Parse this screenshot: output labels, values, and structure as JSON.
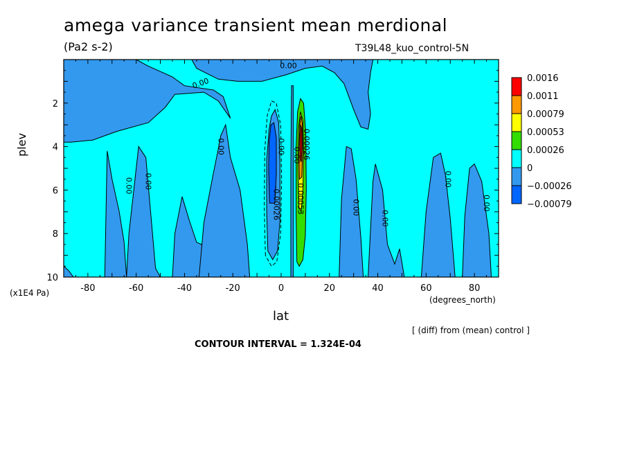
{
  "chart_data": {
    "type": "heatmap",
    "title": "amega variance transient mean merdional",
    "units_label": "(Pa2 s-2)",
    "run_label": "T39L48_kuo_control-5N",
    "xlabel": "lat",
    "ylabel": "plev",
    "x_unit_label": "(degrees_north)",
    "y_unit_label": "(x1E4 Pa)",
    "xlim": [
      -90,
      90
    ],
    "ylim": [
      10,
      0
    ],
    "x_ticks": [
      "-80",
      "-60",
      "-40",
      "-20",
      "0",
      "20",
      "40",
      "60",
      "80"
    ],
    "y_ticks": [
      "2",
      "4",
      "6",
      "8",
      "10"
    ],
    "x_tick_values": [
      -80,
      -60,
      -40,
      -20,
      0,
      20,
      40,
      60,
      80
    ],
    "y_tick_values": [
      2,
      4,
      6,
      8,
      10
    ],
    "note": "[ (diff) from (mean) control ]",
    "contour_interval_text": "CONTOUR INTERVAL = 1.324E-04",
    "colorbar": {
      "levels": [
        "0.0016",
        "0.0011",
        "0.00079",
        "0.00053",
        "0.00026",
        "0",
        "−0.00026",
        "−0.00079"
      ],
      "colors": [
        "#ff0000",
        "#ff9900",
        "#ffff00",
        "#33dd00",
        "#00ffff",
        "#3399ee",
        "#0066ff"
      ]
    },
    "colors": {
      "background": "#00ffff",
      "negative_small": "#3399ee",
      "negative_large": "#0066ff",
      "positive_small": "#33dd00",
      "positive_mid": "#ffff00",
      "positive_high": "#ff9900",
      "positive_max": "#ff0000"
    },
    "contour_labels": [
      {
        "text": "0.00",
        "lat": 3,
        "p": 0.4
      },
      {
        "text": "0.00",
        "lat": -33,
        "p": 1.2
      },
      {
        "text": "0.00",
        "lat": -26,
        "p": 4.0
      },
      {
        "text": "0.00",
        "lat": -64,
        "p": 5.8
      },
      {
        "text": "0.00",
        "lat": -56,
        "p": 5.6
      },
      {
        "text": "-0.00026",
        "lat": -3,
        "p": 6.6
      },
      {
        "text": "0.00",
        "lat": -1,
        "p": 4.0
      },
      {
        "text": "0.00026",
        "lat": 9.5,
        "p": 3.9
      },
      {
        "text": "0.00",
        "lat": 5.5,
        "p": 4.4
      },
      {
        "text": "0.00053",
        "lat": 7,
        "p": 6.4
      },
      {
        "text": "0.00",
        "lat": 30,
        "p": 6.8
      },
      {
        "text": "0.00",
        "lat": 42,
        "p": 7.3
      },
      {
        "text": "0.00",
        "lat": 68,
        "p": 5.5
      },
      {
        "text": "0.00",
        "lat": 84,
        "p": 6.6
      }
    ],
    "regions": [
      {
        "name": "negative-band-sh-1",
        "level": "negative_small",
        "pts": [
          [
            -90,
            10
          ],
          [
            -90,
            9.5
          ],
          [
            -88,
            9.7
          ],
          [
            -86,
            10
          ]
        ]
      },
      {
        "name": "negative-band-sh-2",
        "level": "negative_small",
        "pts": [
          [
            -73,
            10
          ],
          [
            -72,
            4.2
          ],
          [
            -70,
            5.5
          ],
          [
            -67,
            7.0
          ],
          [
            -65,
            8.4
          ],
          [
            -64,
            10
          ]
        ]
      },
      {
        "name": "negative-band-sh-3",
        "level": "negative_small",
        "pts": [
          [
            -64,
            10
          ],
          [
            -63,
            8
          ],
          [
            -61,
            6
          ],
          [
            -59,
            4.0
          ],
          [
            -56,
            4.5
          ],
          [
            -52,
            9.6
          ],
          [
            -50,
            10
          ]
        ]
      },
      {
        "name": "negative-band-sh-4",
        "level": "negative_small",
        "pts": [
          [
            -45,
            10
          ],
          [
            -44,
            8
          ],
          [
            -41,
            6.3
          ],
          [
            -38,
            7.4
          ],
          [
            -35,
            8.4
          ],
          [
            -33,
            8.5
          ],
          [
            -31,
            9.2
          ],
          [
            -30,
            10
          ]
        ]
      },
      {
        "name": "negative-band-mid",
        "level": "negative_small",
        "pts": [
          [
            -34,
            10
          ],
          [
            -32,
            7.5
          ],
          [
            -28,
            5.2
          ],
          [
            -26,
            4.1
          ],
          [
            -25,
            3.5
          ],
          [
            -23,
            3.0
          ],
          [
            -21,
            4.5
          ],
          [
            -17,
            6.0
          ],
          [
            -14,
            8.5
          ],
          [
            -13,
            10
          ]
        ]
      },
      {
        "name": "negative-core",
        "level": "negative_small",
        "pts": [
          [
            -5.5,
            8.8
          ],
          [
            -6,
            7.0
          ],
          [
            -6,
            4.6
          ],
          [
            -5,
            3.2
          ],
          [
            -4,
            2.6
          ],
          [
            -2.5,
            2.3
          ],
          [
            -1,
            2.9
          ],
          [
            -0.5,
            4.8
          ],
          [
            -0.5,
            7.4
          ],
          [
            -1.5,
            8.8
          ],
          [
            -3.5,
            9.2
          ]
        ]
      },
      {
        "name": "negative-core-strong",
        "level": "negative_large",
        "pts": [
          [
            -4.8,
            6.6
          ],
          [
            -5.2,
            5.0
          ],
          [
            -5,
            3.8
          ],
          [
            -4.2,
            3.0
          ],
          [
            -3,
            2.9
          ],
          [
            -2,
            3.6
          ],
          [
            -2,
            5.3
          ],
          [
            -2.6,
            6.6
          ]
        ]
      },
      {
        "name": "equator-column",
        "level": "negative_small",
        "pts": [
          [
            4,
            10
          ],
          [
            4,
            5
          ],
          [
            4.3,
            1.2
          ],
          [
            5,
            1.2
          ],
          [
            5,
            10
          ]
        ]
      },
      {
        "name": "negative-band-nh-1",
        "level": "negative_small",
        "pts": [
          [
            24,
            10
          ],
          [
            25,
            6.4
          ],
          [
            27,
            4.0
          ],
          [
            29,
            4.1
          ],
          [
            31,
            5.5
          ],
          [
            33,
            8.2
          ],
          [
            34,
            10
          ]
        ]
      },
      {
        "name": "negative-band-nh-2",
        "level": "negative_small",
        "pts": [
          [
            36,
            10
          ],
          [
            37,
            7.8
          ],
          [
            38,
            5.6
          ],
          [
            39,
            4.8
          ],
          [
            42,
            6.0
          ],
          [
            44,
            8.5
          ],
          [
            47,
            9.4
          ],
          [
            49,
            8.7
          ],
          [
            51,
            10
          ]
        ]
      },
      {
        "name": "negative-band-nh-3",
        "level": "negative_small",
        "pts": [
          [
            58,
            10
          ],
          [
            60,
            7.0
          ],
          [
            63,
            4.5
          ],
          [
            66,
            4.3
          ],
          [
            68,
            5.3
          ],
          [
            70,
            7.3
          ],
          [
            72,
            10
          ]
        ]
      },
      {
        "name": "negative-band-nh-4",
        "level": "negative_small",
        "pts": [
          [
            75,
            10
          ],
          [
            76,
            7.2
          ],
          [
            78,
            5.0
          ],
          [
            80,
            4.8
          ],
          [
            83,
            5.6
          ],
          [
            86,
            8.0
          ],
          [
            87,
            10
          ]
        ]
      },
      {
        "name": "negative-top",
        "level": "negative_small",
        "pts": [
          [
            -37,
            0
          ],
          [
            -35,
            0.4
          ],
          [
            -26,
            0.9
          ],
          [
            -18,
            1.0
          ],
          [
            -8,
            1.0
          ],
          [
            2,
            0.7
          ],
          [
            10,
            0.4
          ],
          [
            17,
            0.3
          ],
          [
            22,
            0.6
          ],
          [
            26,
            1.1
          ],
          [
            30,
            2.3
          ],
          [
            33,
            3.1
          ],
          [
            36,
            3.2
          ],
          [
            37,
            2.5
          ],
          [
            36,
            1.5
          ],
          [
            37,
            0.6
          ],
          [
            38,
            0
          ]
        ]
      },
      {
        "name": "negative-top-sh",
        "level": "negative_small",
        "pts": [
          [
            -90,
            0
          ],
          [
            -60,
            0
          ],
          [
            -55,
            0.3
          ],
          [
            -45,
            0.8
          ],
          [
            -40,
            1.2
          ],
          [
            -28,
            1.4
          ],
          [
            -24,
            1.7
          ],
          [
            -21,
            2.7
          ],
          [
            -26,
            1.9
          ],
          [
            -32,
            1.5
          ],
          [
            -44,
            1.6
          ],
          [
            -48,
            2.2
          ],
          [
            -55,
            2.9
          ],
          [
            -68,
            3.3
          ],
          [
            -78,
            3.7
          ],
          [
            -87,
            3.8
          ],
          [
            -90,
            3.8
          ]
        ]
      },
      {
        "name": "positive-core-outer",
        "level": "positive_small",
        "pts": [
          [
            6.5,
            9.3
          ],
          [
            6.2,
            7.0
          ],
          [
            6.2,
            4.0
          ],
          [
            6.8,
            2.4
          ],
          [
            8,
            1.8
          ],
          [
            9.3,
            2.0
          ],
          [
            10.2,
            3.4
          ],
          [
            10.4,
            6.0
          ],
          [
            10,
            8.1
          ],
          [
            9,
            9.2
          ],
          [
            7.5,
            9.5
          ]
        ]
      },
      {
        "name": "positive-core-mid",
        "level": "positive_mid",
        "pts": [
          [
            7.4,
            6.8
          ],
          [
            7.0,
            5.0
          ],
          [
            7.2,
            3.2
          ],
          [
            8,
            2.4
          ],
          [
            9,
            2.8
          ],
          [
            9.3,
            4.2
          ],
          [
            9,
            6.0
          ],
          [
            8.3,
            7.0
          ]
        ]
      },
      {
        "name": "positive-core-high",
        "level": "positive_high",
        "pts": [
          [
            7.6,
            5.5
          ],
          [
            7.4,
            4.3
          ],
          [
            7.7,
            3.0
          ],
          [
            8.2,
            2.6
          ],
          [
            8.8,
            3.0
          ],
          [
            8.9,
            4.2
          ],
          [
            8.5,
            5.4
          ]
        ]
      },
      {
        "name": "positive-core-max",
        "level": "positive_max",
        "pts": [
          [
            7.9,
            4.6
          ],
          [
            7.8,
            3.7
          ],
          [
            8.1,
            3.0
          ],
          [
            8.5,
            3.2
          ],
          [
            8.6,
            4.1
          ],
          [
            8.3,
            4.7
          ]
        ]
      }
    ]
  }
}
